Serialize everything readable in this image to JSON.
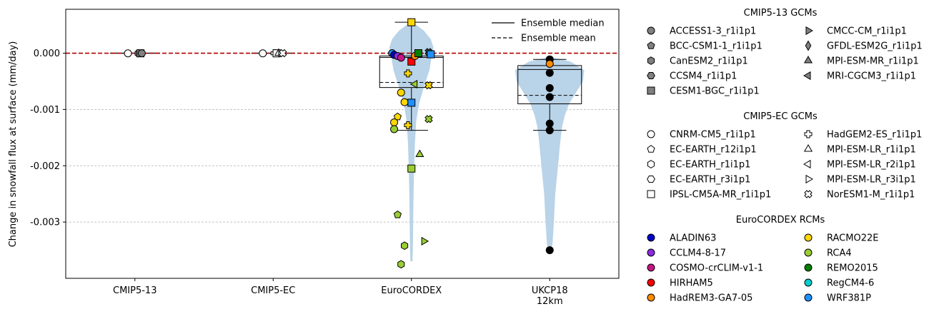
{
  "chart_data": {
    "type": "violin",
    "ylabel": "Change in snowfall flux at surface (mm/day)",
    "ylim": [
      -0.004,
      0.00078
    ],
    "yticks": [
      0.0,
      -0.001,
      -0.002,
      -0.003
    ],
    "ytick_labels": [
      "0.000",
      "-0.001",
      "-0.002",
      "-0.003"
    ],
    "grid": "horizontal dashed",
    "zero_line_color": "#b30000",
    "violin_color": "#b9d3e8",
    "categories": [
      "CMIP5-13",
      "CMIP5-EC",
      "EuroCORDEX",
      "UKCP18\n12km"
    ],
    "line_legend": [
      {
        "label": "Ensemble median",
        "style": "solid"
      },
      {
        "label": "Ensemble mean",
        "style": "dashed"
      }
    ],
    "groups": [
      {
        "category": "CMIP5-13",
        "violin_range": [
          -1e-05,
          5e-06
        ],
        "violin_halfwidth": 0.4,
        "box": null,
        "points": [
          {
            "y": -3e-06,
            "dx": -0.1,
            "marker": "circle",
            "color": "#ffffff"
          },
          {
            "y": -2e-06,
            "dx": 0.05,
            "marker": "hexagon",
            "color": "#808080"
          },
          {
            "y": -2e-06,
            "dx": 0.08,
            "marker": "square",
            "color": "#808080"
          },
          {
            "y": -1e-06,
            "dx": 0.1,
            "marker": "circle",
            "color": "#808080"
          }
        ]
      },
      {
        "category": "CMIP5-EC",
        "violin_range": [
          -1e-05,
          5e-06
        ],
        "violin_halfwidth": 0.35,
        "box": null,
        "points": [
          {
            "y": -3e-06,
            "dx": -0.15,
            "marker": "circle",
            "color": "#ffffff"
          },
          {
            "y": -2e-06,
            "dx": 0.02,
            "marker": "plus",
            "color": "#ffffff"
          },
          {
            "y": -2e-06,
            "dx": 0.05,
            "marker": "square",
            "color": "#ffffff"
          },
          {
            "y": -1e-06,
            "dx": 0.08,
            "marker": "triangle-up",
            "color": "#ffffff"
          },
          {
            "y": 0.0,
            "dx": 0.11,
            "marker": "triangle-right",
            "color": "#ffffff"
          },
          {
            "y": 0.0,
            "dx": 0.14,
            "marker": "cross",
            "color": "#ffffff"
          }
        ]
      },
      {
        "category": "EuroCORDEX",
        "violin_profile": [
          [
            0.00055,
            0.02
          ],
          [
            0.0004,
            0.18
          ],
          [
            0.00025,
            0.28
          ],
          [
            0.0001,
            0.32
          ],
          [
            0.0,
            0.3
          ],
          [
            -0.0003,
            0.26
          ],
          [
            -0.0006,
            0.18
          ],
          [
            -0.0009,
            0.11
          ],
          [
            -0.0012,
            0.07
          ],
          [
            -0.0016,
            0.05
          ],
          [
            -0.002,
            0.04
          ],
          [
            -0.0025,
            0.03
          ],
          [
            -0.003,
            0.025
          ],
          [
            -0.0035,
            0.02
          ],
          [
            -0.0037,
            0.015
          ]
        ],
        "box": {
          "q1": -0.00061,
          "median": -7.65e-05,
          "q3": -5e-05,
          "whisker_low": -0.00137,
          "whisker_high": 0.00055,
          "mean": -0.00052
        },
        "points": [
          {
            "y": 0.00055,
            "dx": 0.0,
            "marker": "square",
            "color": "#ffd700"
          },
          {
            "y": 0.0,
            "dx": -0.28,
            "marker": "circle",
            "color": "#1e90ff"
          },
          {
            "y": -3e-05,
            "dx": -0.25,
            "marker": "circle",
            "color": "#0000cd"
          },
          {
            "y": -5e-05,
            "dx": -0.2,
            "marker": "circle",
            "color": "#8a2be2"
          },
          {
            "y": -8e-05,
            "dx": -0.15,
            "marker": "circle",
            "color": "#c71585"
          },
          {
            "y": -0.00015,
            "dx": 0.0,
            "marker": "square",
            "color": "#ff0000"
          },
          {
            "y": -5e-05,
            "dx": 0.05,
            "marker": "circle",
            "color": "#ff8c00"
          },
          {
            "y": 0.0,
            "dx": 0.1,
            "marker": "square",
            "color": "#008000"
          },
          {
            "y": 2e-05,
            "dx": 0.25,
            "marker": "cross",
            "color": "#2f4f4f"
          },
          {
            "y": -2e-05,
            "dx": 0.28,
            "marker": "square",
            "color": "#1e90ff"
          },
          {
            "y": -0.00036,
            "dx": -0.05,
            "marker": "plus",
            "color": "#ffd700"
          },
          {
            "y": -0.00055,
            "dx": 0.05,
            "marker": "triangle-left",
            "color": "#9acd32"
          },
          {
            "y": -0.00057,
            "dx": 0.25,
            "marker": "cross",
            "color": "#ffd700"
          },
          {
            "y": -0.0007,
            "dx": -0.15,
            "marker": "circle",
            "color": "#ffd700"
          },
          {
            "y": -0.00087,
            "dx": -0.1,
            "marker": "circle",
            "color": "#ffd700"
          },
          {
            "y": -0.00088,
            "dx": 0.0,
            "marker": "square",
            "color": "#1e90ff"
          },
          {
            "y": -0.00113,
            "dx": -0.2,
            "marker": "pentagon",
            "color": "#ffd700"
          },
          {
            "y": -0.00117,
            "dx": 0.25,
            "marker": "cross",
            "color": "#9acd32"
          },
          {
            "y": -0.00123,
            "dx": -0.25,
            "marker": "circle",
            "color": "#ffd700"
          },
          {
            "y": -0.00128,
            "dx": -0.05,
            "marker": "plus",
            "color": "#ffd700"
          },
          {
            "y": -0.00135,
            "dx": -0.25,
            "marker": "circle",
            "color": "#9acd32"
          },
          {
            "y": -0.0018,
            "dx": 0.12,
            "marker": "triangle-up",
            "color": "#9acd32"
          },
          {
            "y": -0.00205,
            "dx": 0.0,
            "marker": "square",
            "color": "#9acd32"
          },
          {
            "y": -0.00287,
            "dx": -0.2,
            "marker": "pentagon",
            "color": "#9acd32"
          },
          {
            "y": -0.00334,
            "dx": 0.18,
            "marker": "triangle-right",
            "color": "#9acd32"
          },
          {
            "y": -0.00342,
            "dx": -0.1,
            "marker": "hexagon",
            "color": "#9acd32"
          },
          {
            "y": -0.00375,
            "dx": -0.15,
            "marker": "hexagon",
            "color": "#9acd32"
          }
        ]
      },
      {
        "category": "UKCP18\n12km",
        "violin_profile": [
          [
            -8e-05,
            0.05
          ],
          [
            -0.00015,
            0.3
          ],
          [
            -0.0003,
            0.5
          ],
          [
            -0.0005,
            0.48
          ],
          [
            -0.0007,
            0.38
          ],
          [
            -0.0009,
            0.28
          ],
          [
            -0.0011,
            0.22
          ],
          [
            -0.0013,
            0.18
          ],
          [
            -0.0016,
            0.15
          ],
          [
            -0.002,
            0.12
          ],
          [
            -0.0025,
            0.08
          ],
          [
            -0.003,
            0.06
          ],
          [
            -0.0034,
            0.04
          ],
          [
            -0.0035,
            0.01
          ]
        ],
        "box": {
          "q1": -0.0009,
          "median": -0.00029,
          "q3": -0.00022,
          "whisker_low": -0.00137,
          "whisker_high": -0.00011,
          "mean": -0.00075
        },
        "points": [
          {
            "y": -0.00011,
            "dx": 0.0,
            "marker": "circle",
            "color": "#000000"
          },
          {
            "y": -0.00019,
            "dx": 0.0,
            "marker": "circle",
            "color": "#ff8c00"
          },
          {
            "y": -0.00035,
            "dx": 0.0,
            "marker": "circle",
            "color": "#000000"
          },
          {
            "y": -0.00062,
            "dx": 0.0,
            "marker": "circle",
            "color": "#000000"
          },
          {
            "y": -0.00078,
            "dx": 0.0,
            "marker": "circle",
            "color": "#000000"
          },
          {
            "y": -0.00125,
            "dx": 0.0,
            "marker": "circle",
            "color": "#000000"
          },
          {
            "y": -0.00137,
            "dx": 0.0,
            "marker": "circle",
            "color": "#000000"
          },
          {
            "y": -0.0035,
            "dx": 0.0,
            "marker": "circle",
            "color": "#000000"
          }
        ]
      }
    ]
  },
  "legend": {
    "sections": [
      {
        "title": "CMIP5-13 GCMs",
        "col1": [
          {
            "label": "ACCESS1-3_r1i1p1",
            "marker": "circle",
            "color": "#808080"
          },
          {
            "label": "BCC-CSM1-1_r1i1p1",
            "marker": "pentagon",
            "color": "#808080"
          },
          {
            "label": "CanESM2_r1i1p1",
            "marker": "hexagon",
            "color": "#808080"
          },
          {
            "label": "CCSM4_r1i1p1",
            "marker": "hexagon2",
            "color": "#808080"
          },
          {
            "label": "CESM1-BGC_r1i1p1",
            "marker": "square",
            "color": "#808080"
          }
        ],
        "col2": [
          {
            "label": "CMCC-CM_r1i1p1",
            "marker": "triangle-right",
            "color": "#808080"
          },
          {
            "label": "GFDL-ESM2G_r1i1p1",
            "marker": "diamond",
            "color": "#808080"
          },
          {
            "label": "MPI-ESM-MR_r1i1p1",
            "marker": "triangle-up",
            "color": "#808080"
          },
          {
            "label": "MRI-CGCM3_r1i1p1",
            "marker": "triangle-left",
            "color": "#808080"
          }
        ]
      },
      {
        "title": "CMIP5-EC GCMs",
        "col1": [
          {
            "label": "CNRM-CM5_r1i1p1",
            "marker": "circle",
            "color": "#ffffff"
          },
          {
            "label": "EC-EARTH_r12i1p1",
            "marker": "pentagon",
            "color": "#ffffff"
          },
          {
            "label": "EC-EARTH_r1i1p1",
            "marker": "hexagon",
            "color": "#ffffff"
          },
          {
            "label": "EC-EARTH_r3i1p1",
            "marker": "hexagon2",
            "color": "#ffffff"
          },
          {
            "label": "IPSL-CM5A-MR_r1i1p1",
            "marker": "square",
            "color": "#ffffff"
          }
        ],
        "col2": [
          {
            "label": "HadGEM2-ES_r1i1p1",
            "marker": "plus",
            "color": "#ffffff"
          },
          {
            "label": "MPI-ESM-LR_r1i1p1",
            "marker": "triangle-up",
            "color": "#ffffff"
          },
          {
            "label": "MPI-ESM-LR_r2i1p1",
            "marker": "triangle-left",
            "color": "#ffffff"
          },
          {
            "label": "MPI-ESM-LR_r3i1p1",
            "marker": "triangle-right",
            "color": "#ffffff"
          },
          {
            "label": "NorESM1-M_r1i1p1",
            "marker": "cross",
            "color": "#ffffff"
          }
        ]
      },
      {
        "title": "EuroCORDEX RCMs",
        "col1": [
          {
            "label": "ALADIN63",
            "marker": "circle",
            "color": "#0000cd"
          },
          {
            "label": "CCLM4-8-17",
            "marker": "circle",
            "color": "#8a2be2"
          },
          {
            "label": "COSMO-crCLIM-v1-1",
            "marker": "circle",
            "color": "#c71585"
          },
          {
            "label": "HIRHAM5",
            "marker": "circle",
            "color": "#ff0000"
          },
          {
            "label": "HadREM3-GA7-05",
            "marker": "circle",
            "color": "#ff8c00"
          }
        ],
        "col2": [
          {
            "label": "RACMO22E",
            "marker": "circle",
            "color": "#ffd700"
          },
          {
            "label": "RCA4",
            "marker": "circle",
            "color": "#9acd32"
          },
          {
            "label": "REMO2015",
            "marker": "circle",
            "color": "#008000"
          },
          {
            "label": "RegCM4-6",
            "marker": "circle",
            "color": "#00ced1"
          },
          {
            "label": "WRF381P",
            "marker": "circle",
            "color": "#1e90ff"
          }
        ]
      }
    ]
  }
}
